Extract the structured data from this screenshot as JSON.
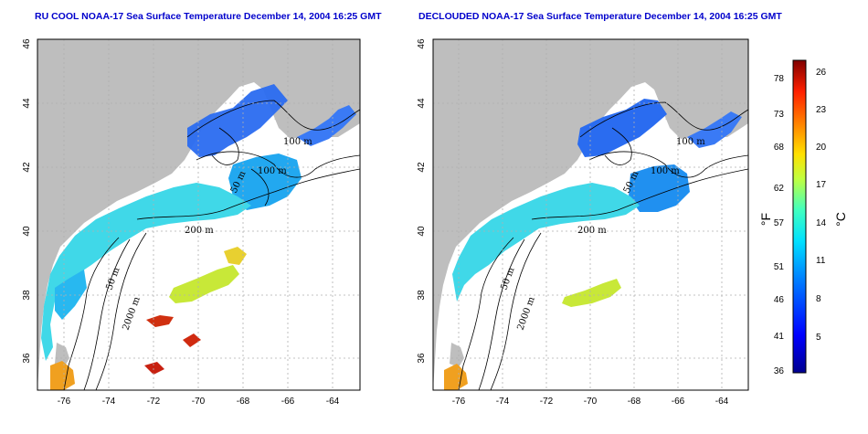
{
  "panels": [
    {
      "id": "rucool",
      "title": "RU COOL NOAA-17 Sea Surface Temperature December 14, 2004 16:25 GMT",
      "contour_labels": [
        "100 m",
        "100 m",
        "50 m",
        "200 m",
        "50 m",
        "2000 m"
      ]
    },
    {
      "id": "declouded",
      "title": "DECLOUDED NOAA-17 Sea Surface Temperature December 14, 2004 16:25 GMT",
      "contour_labels": [
        "100 m",
        "100 m",
        "50 m",
        "200 m",
        "50 m",
        "2000 m"
      ]
    }
  ],
  "axes": {
    "x_ticks": [
      "-76",
      "-74",
      "-72",
      "-70",
      "-68",
      "-66",
      "-64"
    ],
    "y_ticks": [
      "36",
      "38",
      "40",
      "42",
      "44",
      "46"
    ],
    "x_range": [
      -77.2,
      -63
    ],
    "y_range": [
      35,
      46
    ]
  },
  "colorbar": {
    "fahrenheit_ticks": [
      "78",
      "73",
      "68",
      "62",
      "57",
      "51",
      "46",
      "41",
      "36"
    ],
    "celsius_ticks": [
      "26",
      "23",
      "20",
      "17",
      "14",
      "11",
      "8",
      "5"
    ],
    "fahrenheit_unit": "°F",
    "celsius_unit": "°C"
  },
  "colors": {
    "land": "#bebebe",
    "title": "#0000cc",
    "grid": "#b0b0b0"
  }
}
